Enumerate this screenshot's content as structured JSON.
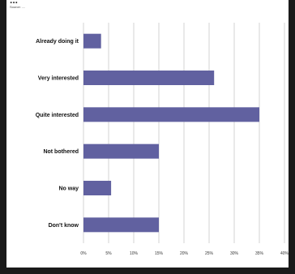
{
  "title": "...",
  "subtitle": "Source: ....",
  "chart_data": {
    "type": "bar",
    "orientation": "horizontal",
    "categories": [
      "Already doing it",
      "Very interested",
      "Quite interested",
      "Not bothered",
      "No way",
      "Don't know"
    ],
    "values": [
      3.5,
      26,
      35,
      15,
      5.5,
      15
    ],
    "ticks": [
      "0%",
      "5%",
      "10%",
      "15%",
      "20%",
      "25%",
      "30%",
      "35%",
      "40%"
    ],
    "xlim": [
      0,
      40
    ],
    "grid": true,
    "bar_color": "#6161a0",
    "xlabel": "",
    "ylabel": ""
  }
}
